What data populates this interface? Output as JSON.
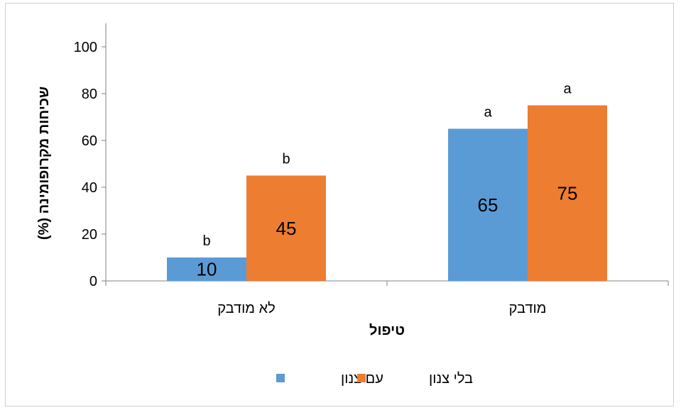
{
  "chart_data": {
    "type": "bar",
    "categories": [
      "לא מודבק",
      "מודבק"
    ],
    "series": [
      {
        "name": "עם צנון",
        "values": [
          10,
          65
        ],
        "color": "#5B9BD5",
        "significance": [
          "b",
          "a"
        ]
      },
      {
        "name": "בלי צנון",
        "values": [
          45,
          75
        ],
        "color": "#ED7D31",
        "significance": [
          "b",
          "a"
        ]
      }
    ],
    "xlabel": "טיפול",
    "ylabel": "שכיחות מקרופומינה (%)",
    "ylim": [
      0,
      110
    ],
    "yticks": [
      0,
      20,
      40,
      60,
      80,
      100
    ],
    "grid": false,
    "legend": "bottom"
  }
}
